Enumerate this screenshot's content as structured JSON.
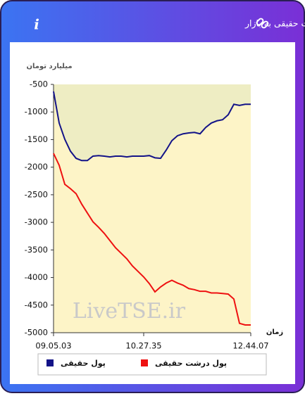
{
  "header": {
    "title": "برآیند ورود و خروج پول حقیقی و پول درشت حقیقی به بازار"
  },
  "chart_data": {
    "type": "line",
    "y_label": "میلیارد تومان",
    "x_label": "زمان",
    "watermark": "LiveTSE.ir",
    "categories": [
      "09.05.03",
      null,
      null,
      null,
      null,
      null,
      null,
      null,
      null,
      null,
      null,
      null,
      null,
      null,
      null,
      null,
      "10.27.35",
      null,
      null,
      null,
      null,
      null,
      null,
      null,
      null,
      null,
      null,
      null,
      null,
      null,
      null,
      null,
      null,
      null,
      null,
      "12.44.07"
    ],
    "series": [
      {
        "name": "پول حقیقی",
        "color": "#131388",
        "values": [
          -628,
          -1200,
          -1495,
          -1710,
          -1840,
          -1880,
          -1880,
          -1800,
          -1790,
          -1800,
          -1815,
          -1800,
          -1800,
          -1815,
          -1800,
          -1800,
          -1800,
          -1790,
          -1830,
          -1840,
          -1690,
          -1520,
          -1430,
          -1395,
          -1380,
          -1370,
          -1395,
          -1280,
          -1200,
          -1160,
          -1140,
          -1050,
          -860,
          -880,
          -860,
          -860
        ]
      },
      {
        "name": "پول درشت حقیقی",
        "color": "#ee1111",
        "values": [
          -1750,
          -1965,
          -2310,
          -2390,
          -2480,
          -2670,
          -2830,
          -2990,
          -3090,
          -3200,
          -3330,
          -3460,
          -3560,
          -3660,
          -3790,
          -3890,
          -3990,
          -4110,
          -4260,
          -4170,
          -4100,
          -4050,
          -4100,
          -4140,
          -4200,
          -4220,
          -4250,
          -4250,
          -4280,
          -4280,
          -4290,
          -4300,
          -4390,
          -4830,
          -4860,
          -4860
        ]
      }
    ],
    "ylim": [
      -5000,
      -500
    ],
    "yticks": [
      -5000,
      -4500,
      -4000,
      -3500,
      -3000,
      -2500,
      -2000,
      -1500,
      -1000,
      -500
    ],
    "grid": false
  }
}
